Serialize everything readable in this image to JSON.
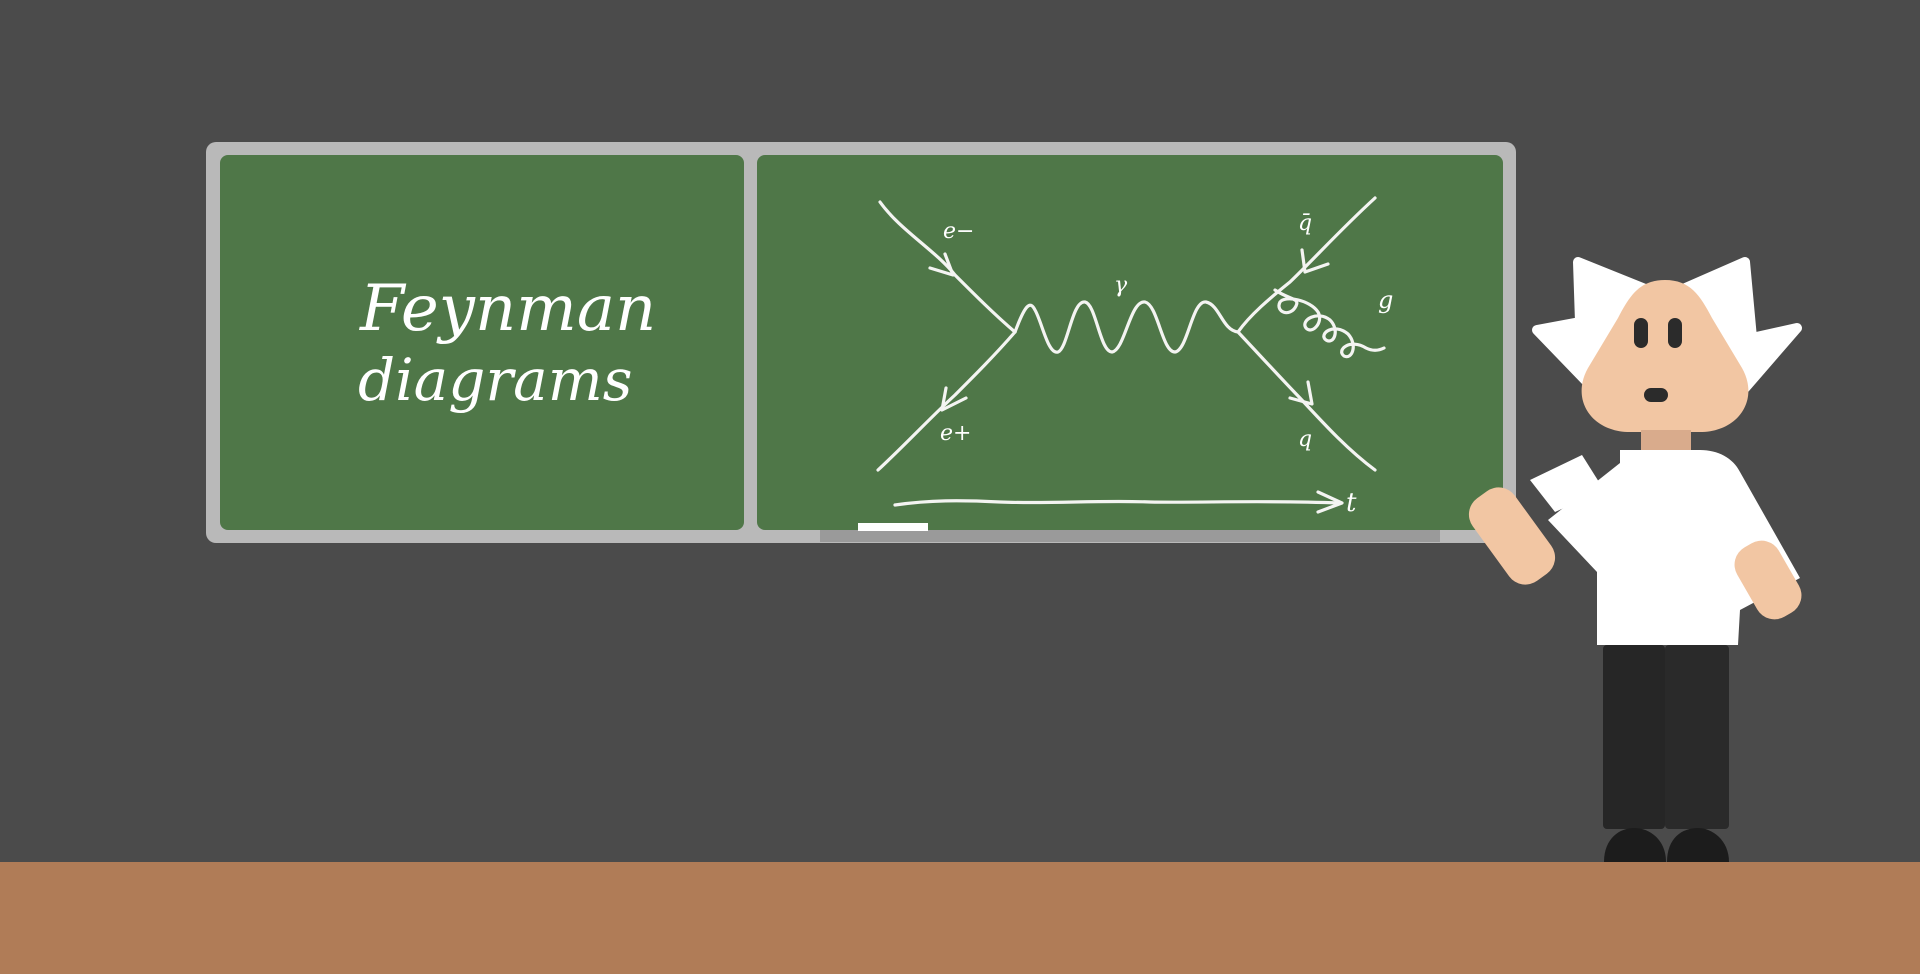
{
  "board_left": {
    "title_line1": "Feynman",
    "title_line2": "diagrams"
  },
  "board_right": {
    "labels": {
      "electron": "e−",
      "positron": "e+",
      "photon": "γ",
      "antiquark": "q̄",
      "gluon": "g",
      "quark": "q",
      "time": "t"
    }
  },
  "colors": {
    "wall": "#4b4b4b",
    "floor": "#b07c57",
    "board_green": "#4f7748",
    "board_frame": "#b9b9b9",
    "chalk": "#f4f4f2",
    "skin": "#f2c6a3",
    "neck": "#d9ab8c",
    "shirt": "#ffffff",
    "pants": "#262626"
  }
}
